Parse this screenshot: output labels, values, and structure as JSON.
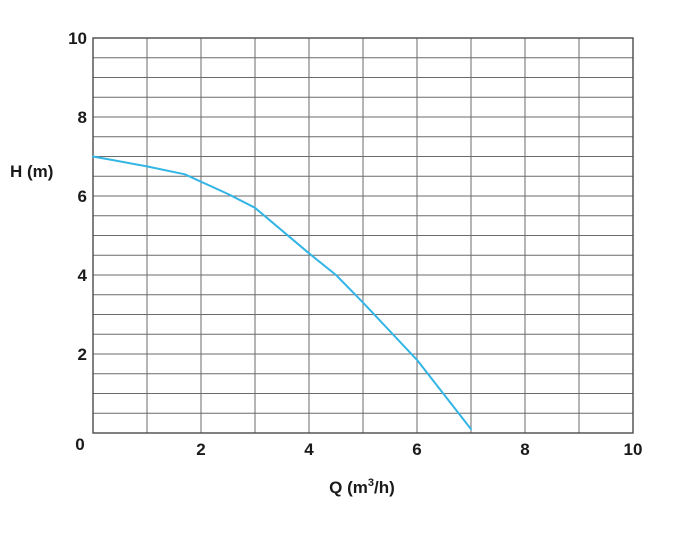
{
  "chart_data": {
    "type": "line",
    "title": "",
    "xlabel": "Q (m³/h)",
    "ylabel": "H (m)",
    "xlim": [
      0,
      10
    ],
    "ylim": [
      0,
      10
    ],
    "x_ticks": [
      0,
      2,
      4,
      6,
      8,
      10
    ],
    "y_ticks": [
      0,
      2,
      4,
      6,
      8,
      10
    ],
    "grid": true,
    "x_minor_step": 1,
    "y_minor_step": 0.5,
    "series": [
      {
        "color": "#33b5e5",
        "x": [
          0,
          1.0,
          1.7,
          2.5,
          3.0,
          4.0,
          4.5,
          5.0,
          6.0,
          7.0
        ],
        "y": [
          7.0,
          6.75,
          6.55,
          6.05,
          5.7,
          4.55,
          4.0,
          3.3,
          1.85,
          0.1
        ]
      }
    ]
  }
}
